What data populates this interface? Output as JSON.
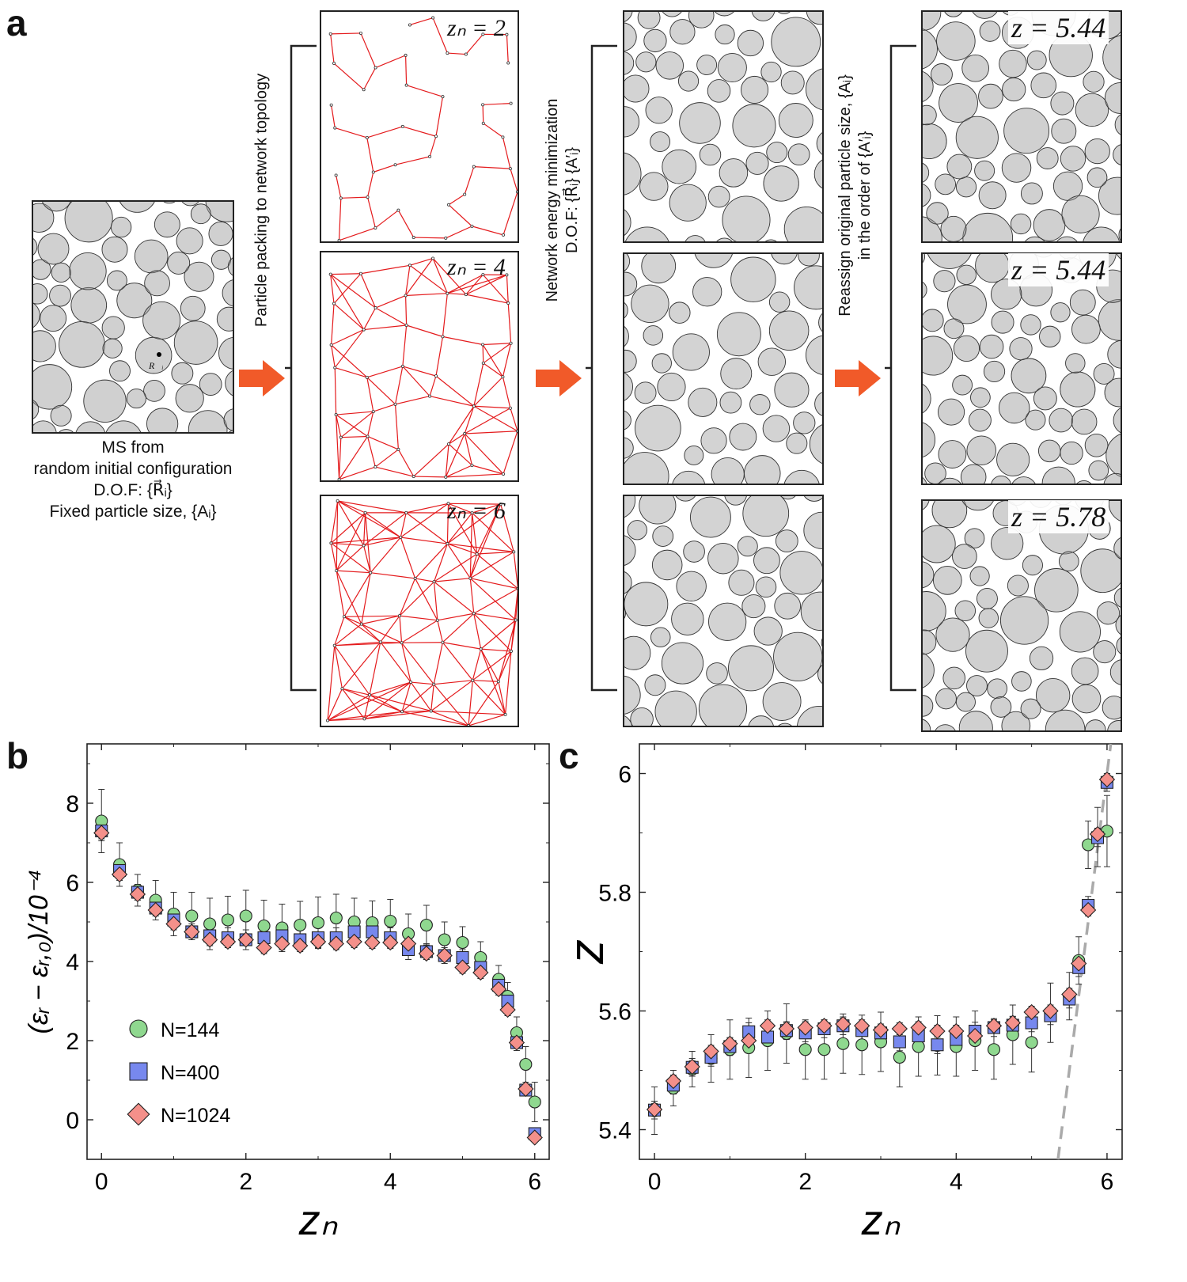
{
  "panel_a": {
    "letter": "a",
    "start_caption": [
      "MS from",
      "random initial configuration",
      "D.O.F: {R⃗ᵢ}",
      "Fixed particle size, {Aᵢ}"
    ],
    "point_label": "R⃗ᵢ",
    "step1_label": "Particle packing to network topology",
    "step2_label": [
      "Network energy minimization",
      "D.O.F: {R⃗ᵢ} {A′ᵢ}"
    ],
    "step3_label": [
      "Reassign original particle size, {Aᵢ}",
      "in the order of {A′ᵢ}"
    ],
    "network_labels": [
      "zₙ = 2",
      "zₙ = 4",
      "zₙ = 6"
    ],
    "result_labels": [
      "z = 5.44",
      "z = 5.44",
      "z = 5.78"
    ],
    "arrow_color": "#f15a29",
    "network_color": "#e41a1c"
  },
  "chart_data": [
    {
      "type": "scatter",
      "panel": "b",
      "xlabel": "zₙ",
      "ylabel": "(εᵣ − εᵣ,₀)/10⁻⁴",
      "xlim": [
        -0.2,
        6.2
      ],
      "ylim": [
        -1,
        9.5
      ],
      "xticks": [
        "0",
        "2",
        "4",
        "6"
      ],
      "yticks": [
        "0",
        "2",
        "4",
        "6",
        "8"
      ],
      "legend_position": "bottom-left",
      "x": [
        0,
        0.25,
        0.5,
        0.75,
        1.0,
        1.25,
        1.5,
        1.75,
        2.0,
        2.25,
        2.5,
        2.75,
        3.0,
        3.25,
        3.5,
        3.75,
        4.0,
        4.25,
        4.5,
        4.75,
        5.0,
        5.25,
        5.5,
        5.625,
        5.75,
        5.875,
        6.0
      ],
      "series": [
        {
          "name": "N=144",
          "marker": "circle",
          "color": "#8fd88f",
          "values": [
            7.55,
            6.45,
            5.8,
            5.55,
            5.2,
            5.15,
            4.95,
            5.05,
            5.15,
            4.9,
            4.85,
            4.92,
            4.98,
            5.1,
            5.0,
            4.98,
            5.02,
            4.7,
            4.92,
            4.55,
            4.48,
            4.1,
            3.55,
            3.12,
            2.2,
            1.4,
            0.45
          ],
          "errors": [
            0.8,
            0.55,
            0.4,
            0.5,
            0.55,
            0.6,
            0.65,
            0.6,
            0.65,
            0.65,
            0.6,
            0.6,
            0.65,
            0.6,
            0.6,
            0.55,
            0.55,
            0.5,
            0.5,
            0.45,
            0.4,
            0.4,
            0.35,
            0.35,
            0.4,
            0.45,
            0.5
          ]
        },
        {
          "name": "N=400",
          "marker": "square",
          "color": "#7788ee",
          "values": [
            7.3,
            6.3,
            5.75,
            5.35,
            5.05,
            4.75,
            4.65,
            4.6,
            4.55,
            4.6,
            4.65,
            4.55,
            4.6,
            4.6,
            4.75,
            4.75,
            4.6,
            4.3,
            4.25,
            4.15,
            4.1,
            3.85,
            3.4,
            3.0,
            1.95,
            0.75,
            -0.35
          ],
          "errors": [
            0.25,
            0.2,
            0.2,
            0.2,
            0.25,
            0.2,
            0.25,
            0.25,
            0.25,
            0.25,
            0.25,
            0.25,
            0.25,
            0.25,
            0.25,
            0.25,
            0.25,
            0.25,
            0.2,
            0.2,
            0.2,
            0.2,
            0.2,
            0.2,
            0.2,
            0.15,
            0.15
          ]
        },
        {
          "name": "N=1024",
          "marker": "diamond",
          "color": "#f4908a",
          "values": [
            7.25,
            6.2,
            5.7,
            5.3,
            4.95,
            4.75,
            4.55,
            4.5,
            4.55,
            4.35,
            4.45,
            4.4,
            4.5,
            4.45,
            4.5,
            4.48,
            4.48,
            4.45,
            4.2,
            4.15,
            3.85,
            3.72,
            3.3,
            2.78,
            1.95,
            0.78,
            -0.45
          ],
          "errors": [
            0.15,
            0.15,
            0.15,
            0.15,
            0.15,
            0.15,
            0.15,
            0.15,
            0.15,
            0.15,
            0.15,
            0.15,
            0.15,
            0.15,
            0.15,
            0.15,
            0.15,
            0.15,
            0.15,
            0.15,
            0.15,
            0.15,
            0.15,
            0.15,
            0.15,
            0.1,
            0.1
          ]
        }
      ]
    },
    {
      "type": "scatter",
      "panel": "c",
      "xlabel": "zₙ",
      "ylabel": "z",
      "xlim": [
        -0.2,
        6.2
      ],
      "ylim": [
        5.35,
        6.05
      ],
      "xticks": [
        "0",
        "2",
        "4",
        "6"
      ],
      "yticks": [
        "5.4",
        "5.6",
        "5.8",
        "6"
      ],
      "fit_line": {
        "style": "dashed",
        "color": "#aaaaaa",
        "x": [
          5.35,
          6.05
        ],
        "y": [
          5.35,
          6.05
        ]
      },
      "x": [
        0,
        0.25,
        0.5,
        0.75,
        1.0,
        1.25,
        1.5,
        1.75,
        2.0,
        2.25,
        2.5,
        2.75,
        3.0,
        3.25,
        3.5,
        3.75,
        4.0,
        4.25,
        4.5,
        4.75,
        5.0,
        5.25,
        5.5,
        5.625,
        5.75,
        5.875,
        6.0
      ],
      "series": [
        {
          "name": "N=144",
          "marker": "circle",
          "color": "#8fd88f",
          "values": [
            5.432,
            5.47,
            5.502,
            5.52,
            5.535,
            5.538,
            5.55,
            5.562,
            5.535,
            5.535,
            5.545,
            5.543,
            5.548,
            5.522,
            5.54,
            5.542,
            5.54,
            5.55,
            5.535,
            5.56,
            5.547,
            5.597,
            5.625,
            5.685,
            5.88,
            5.893,
            5.903
          ],
          "errors": [
            0.04,
            0.03,
            0.03,
            0.04,
            0.05,
            0.05,
            0.05,
            0.05,
            0.05,
            0.05,
            0.05,
            0.05,
            0.05,
            0.05,
            0.05,
            0.05,
            0.05,
            0.05,
            0.05,
            0.05,
            0.05,
            0.05,
            0.04,
            0.04,
            0.04,
            0.05,
            0.06
          ]
        },
        {
          "name": "N=400",
          "marker": "square",
          "color": "#7788ee",
          "values": [
            5.433,
            5.475,
            5.505,
            5.522,
            5.54,
            5.565,
            5.556,
            5.567,
            5.563,
            5.57,
            5.575,
            5.567,
            5.563,
            5.548,
            5.558,
            5.543,
            5.552,
            5.566,
            5.572,
            5.576,
            5.58,
            5.592,
            5.62,
            5.673,
            5.778,
            5.892,
            5.985
          ],
          "errors": [
            0.015,
            0.015,
            0.015,
            0.015,
            0.015,
            0.015,
            0.015,
            0.015,
            0.015,
            0.015,
            0.015,
            0.015,
            0.015,
            0.015,
            0.015,
            0.015,
            0.015,
            0.015,
            0.015,
            0.015,
            0.015,
            0.015,
            0.015,
            0.015,
            0.015,
            0.015,
            0.015
          ]
        },
        {
          "name": "N=1024",
          "marker": "diamond",
          "color": "#f4908a",
          "values": [
            5.434,
            5.482,
            5.506,
            5.532,
            5.545,
            5.55,
            5.575,
            5.57,
            5.572,
            5.575,
            5.578,
            5.575,
            5.568,
            5.57,
            5.572,
            5.566,
            5.566,
            5.558,
            5.575,
            5.58,
            5.598,
            5.6,
            5.628,
            5.68,
            5.77,
            5.898,
            5.99
          ],
          "errors": [
            0.01,
            0.01,
            0.01,
            0.01,
            0.01,
            0.01,
            0.01,
            0.01,
            0.01,
            0.01,
            0.01,
            0.01,
            0.01,
            0.01,
            0.01,
            0.01,
            0.01,
            0.01,
            0.01,
            0.01,
            0.01,
            0.01,
            0.01,
            0.01,
            0.01,
            0.01,
            0.01
          ]
        }
      ]
    }
  ]
}
